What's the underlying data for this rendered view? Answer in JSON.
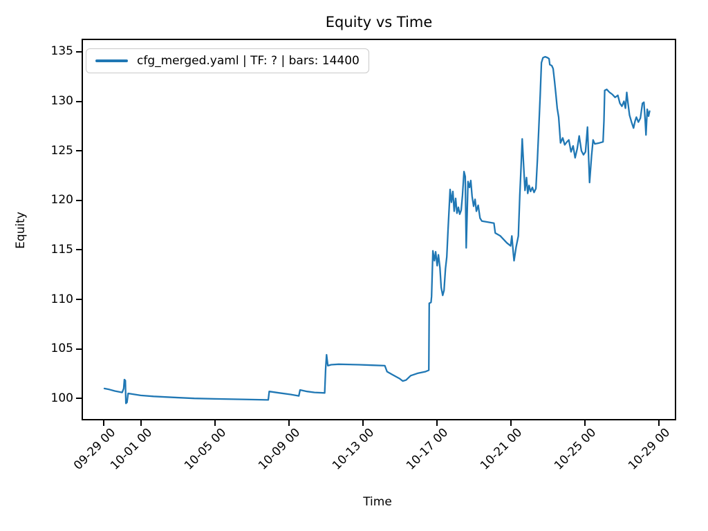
{
  "figure": {
    "background": "#ffffff"
  },
  "colors": {
    "line": "#1f77b4",
    "text": "#000000",
    "spine": "#000000",
    "legend_border": "#c9c9c9"
  },
  "chart_data": {
    "type": "line",
    "title": "Equity vs Time",
    "xlabel": "Time",
    "ylabel": "Equity",
    "grid": false,
    "x_unit": "days since 09-29 00:00",
    "xlim": [
      -1.12,
      30.88
    ],
    "ylim": [
      97.92,
      136.18
    ],
    "y_ticks": [
      100,
      105,
      110,
      115,
      120,
      125,
      130,
      135
    ],
    "x_ticks": {
      "days": [
        0,
        2,
        6,
        10,
        14,
        18,
        22,
        26,
        30
      ],
      "labels": [
        "09-29 00",
        "10-01 00",
        "10-05 00",
        "10-09 00",
        "10-13 00",
        "10-17 00",
        "10-21 00",
        "10-25 00",
        "10-29 00"
      ]
    },
    "legend": {
      "position": "upper-left",
      "entries": [
        {
          "label": "cfg_merged.yaml | TF: ? | bars: 14400",
          "color": "#1f77b4"
        }
      ]
    },
    "series": [
      {
        "name": "cfg_merged.yaml | TF: ? | bars: 14400",
        "color": "#1f77b4",
        "points": [
          [
            0.04,
            101.0
          ],
          [
            0.3,
            100.9
          ],
          [
            0.6,
            100.75
          ],
          [
            1.0,
            100.6
          ],
          [
            1.08,
            101.0
          ],
          [
            1.12,
            101.9
          ],
          [
            1.17,
            101.8
          ],
          [
            1.2,
            99.5
          ],
          [
            1.26,
            99.6
          ],
          [
            1.32,
            100.5
          ],
          [
            1.5,
            100.45
          ],
          [
            2.0,
            100.3
          ],
          [
            2.7,
            100.2
          ],
          [
            3.8,
            100.1
          ],
          [
            4.9,
            100.0
          ],
          [
            6.0,
            99.95
          ],
          [
            7.5,
            99.9
          ],
          [
            8.9,
            99.85
          ],
          [
            8.95,
            100.7
          ],
          [
            9.5,
            100.55
          ],
          [
            10.1,
            100.4
          ],
          [
            10.55,
            100.25
          ],
          [
            10.62,
            100.85
          ],
          [
            11.0,
            100.7
          ],
          [
            11.4,
            100.6
          ],
          [
            11.95,
            100.55
          ],
          [
            12.0,
            103.0
          ],
          [
            12.05,
            104.4
          ],
          [
            12.12,
            103.3
          ],
          [
            12.3,
            103.4
          ],
          [
            12.7,
            103.45
          ],
          [
            13.8,
            103.4
          ],
          [
            14.5,
            103.35
          ],
          [
            15.2,
            103.3
          ],
          [
            15.32,
            102.7
          ],
          [
            15.6,
            102.4
          ],
          [
            16.0,
            102.0
          ],
          [
            16.17,
            101.75
          ],
          [
            16.35,
            101.85
          ],
          [
            16.6,
            102.3
          ],
          [
            17.0,
            102.55
          ],
          [
            17.4,
            102.7
          ],
          [
            17.58,
            102.85
          ],
          [
            17.6,
            109.6
          ],
          [
            17.7,
            109.7
          ],
          [
            17.73,
            110.3
          ],
          [
            17.8,
            114.9
          ],
          [
            17.88,
            113.9
          ],
          [
            17.95,
            114.8
          ],
          [
            18.03,
            113.4
          ],
          [
            18.1,
            114.5
          ],
          [
            18.18,
            113.2
          ],
          [
            18.25,
            111.2
          ],
          [
            18.33,
            110.4
          ],
          [
            18.4,
            110.9
          ],
          [
            18.48,
            113.1
          ],
          [
            18.55,
            114.3
          ],
          [
            18.62,
            117.0
          ],
          [
            18.73,
            121.1
          ],
          [
            18.8,
            119.8
          ],
          [
            18.88,
            120.9
          ],
          [
            18.95,
            118.9
          ],
          [
            19.03,
            120.2
          ],
          [
            19.1,
            118.7
          ],
          [
            19.18,
            119.3
          ],
          [
            19.25,
            118.6
          ],
          [
            19.33,
            119.0
          ],
          [
            19.4,
            120.5
          ],
          [
            19.48,
            122.9
          ],
          [
            19.55,
            122.4
          ],
          [
            19.6,
            115.2
          ],
          [
            19.7,
            121.9
          ],
          [
            19.78,
            121.3
          ],
          [
            19.85,
            122.0
          ],
          [
            19.92,
            120.4
          ],
          [
            20.0,
            119.4
          ],
          [
            20.08,
            120.1
          ],
          [
            20.15,
            118.9
          ],
          [
            20.25,
            119.5
          ],
          [
            20.35,
            118.2
          ],
          [
            20.45,
            117.9
          ],
          [
            21.1,
            117.7
          ],
          [
            21.17,
            116.7
          ],
          [
            21.45,
            116.4
          ],
          [
            21.8,
            115.7
          ],
          [
            22.0,
            115.4
          ],
          [
            22.07,
            116.4
          ],
          [
            22.15,
            114.6
          ],
          [
            22.19,
            113.9
          ],
          [
            22.3,
            115.3
          ],
          [
            22.42,
            116.4
          ],
          [
            22.5,
            120.5
          ],
          [
            22.57,
            123.5
          ],
          [
            22.63,
            126.2
          ],
          [
            22.7,
            123.7
          ],
          [
            22.78,
            121.0
          ],
          [
            22.86,
            122.3
          ],
          [
            22.93,
            120.7
          ],
          [
            23.0,
            121.5
          ],
          [
            23.08,
            120.9
          ],
          [
            23.18,
            121.3
          ],
          [
            23.27,
            120.8
          ],
          [
            23.37,
            121.2
          ],
          [
            23.45,
            124.0
          ],
          [
            23.52,
            127.0
          ],
          [
            23.6,
            130.6
          ],
          [
            23.67,
            133.9
          ],
          [
            23.75,
            134.4
          ],
          [
            23.87,
            134.5
          ],
          [
            24.0,
            134.4
          ],
          [
            24.08,
            134.3
          ],
          [
            24.12,
            133.7
          ],
          [
            24.23,
            133.6
          ],
          [
            24.3,
            133.3
          ],
          [
            24.38,
            132.0
          ],
          [
            24.45,
            130.7
          ],
          [
            24.52,
            129.3
          ],
          [
            24.6,
            128.4
          ],
          [
            24.7,
            125.8
          ],
          [
            24.82,
            126.3
          ],
          [
            24.93,
            125.6
          ],
          [
            25.05,
            125.9
          ],
          [
            25.15,
            126.1
          ],
          [
            25.27,
            124.9
          ],
          [
            25.38,
            125.5
          ],
          [
            25.49,
            124.3
          ],
          [
            25.6,
            125.2
          ],
          [
            25.71,
            126.5
          ],
          [
            25.83,
            125.0
          ],
          [
            25.94,
            124.6
          ],
          [
            26.05,
            124.9
          ],
          [
            26.16,
            127.4
          ],
          [
            26.27,
            121.8
          ],
          [
            26.38,
            124.5
          ],
          [
            26.46,
            126.1
          ],
          [
            26.55,
            125.7
          ],
          [
            26.8,
            125.8
          ],
          [
            27.0,
            125.9
          ],
          [
            27.05,
            128.0
          ],
          [
            27.09,
            131.1
          ],
          [
            27.2,
            131.2
          ],
          [
            27.35,
            130.9
          ],
          [
            27.5,
            130.7
          ],
          [
            27.65,
            130.4
          ],
          [
            27.8,
            130.6
          ],
          [
            27.91,
            129.8
          ],
          [
            28.02,
            129.5
          ],
          [
            28.13,
            130.0
          ],
          [
            28.21,
            129.3
          ],
          [
            28.28,
            130.9
          ],
          [
            28.35,
            129.8
          ],
          [
            28.43,
            128.6
          ],
          [
            28.54,
            127.9
          ],
          [
            28.65,
            127.3
          ],
          [
            28.73,
            128.0
          ],
          [
            28.8,
            128.4
          ],
          [
            28.91,
            127.9
          ],
          [
            29.02,
            128.3
          ],
          [
            29.13,
            129.8
          ],
          [
            29.21,
            129.9
          ],
          [
            29.28,
            128.0
          ],
          [
            29.32,
            126.6
          ],
          [
            29.39,
            129.2
          ],
          [
            29.46,
            128.5
          ],
          [
            29.52,
            129.0
          ]
        ]
      }
    ]
  }
}
